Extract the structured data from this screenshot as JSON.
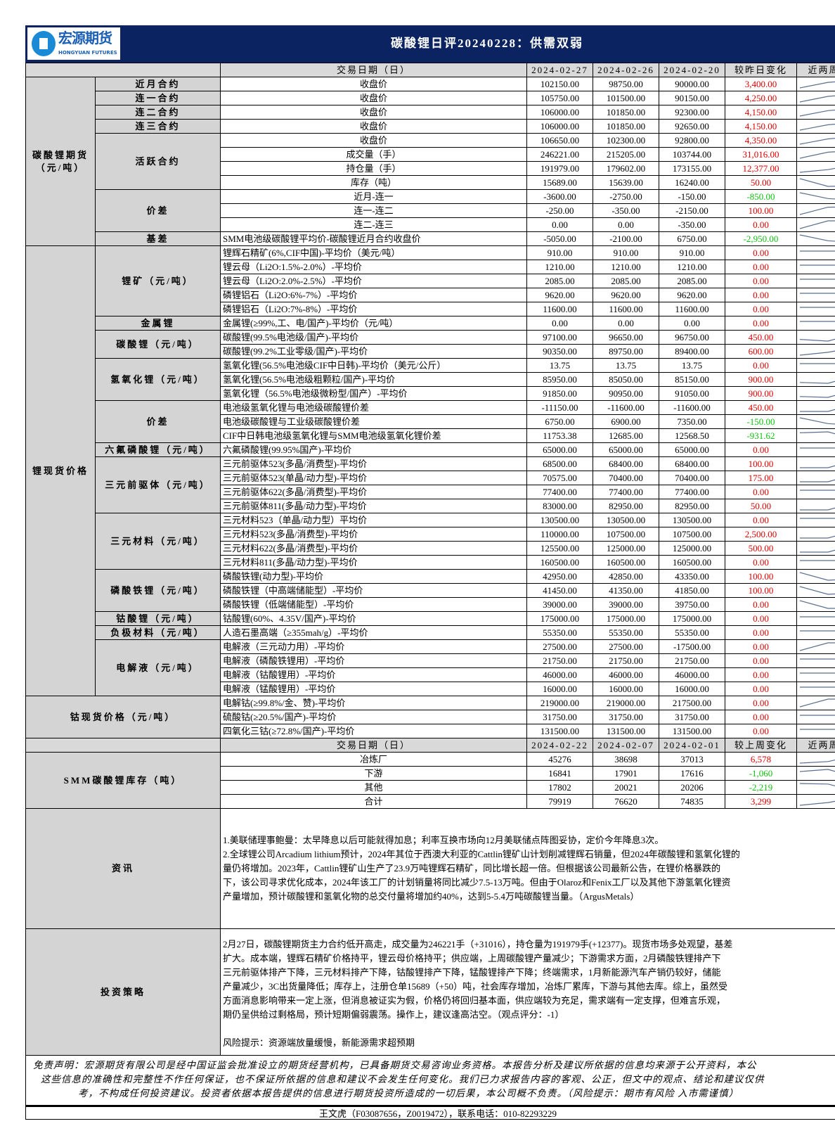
{
  "header": {
    "logo_cn": "宏源期货",
    "logo_en": "HONGYUAN FUTURES",
    "title": "碳酸锂日评20240228：供需双弱"
  },
  "colors": {
    "band": "#0b2461",
    "label_bg": "#d4d4d4",
    "up": "#e00000",
    "down": "#10c010",
    "sparkline": "#5a6f8f"
  },
  "table": {
    "header1": {
      "label": "交易日期（日）",
      "dates": [
        "2024-02-27",
        "2024-02-26",
        "2024-02-20"
      ],
      "change": "较昨日变化",
      "trend": "近两周"
    },
    "sections": [
      {
        "category": [
          "碳酸锂期货",
          "（元/吨）"
        ],
        "groups": [
          {
            "name": "近月合约",
            "rows": [
              [
                "收盘价",
                "102150.00",
                "98750.00",
                "90000.00",
                "3,400.00"
              ]
            ]
          },
          {
            "name": "连一合约",
            "rows": [
              [
                "收盘价",
                "105750.00",
                "101500.00",
                "90150.00",
                "4,250.00"
              ]
            ]
          },
          {
            "name": "连二合约",
            "rows": [
              [
                "收盘价",
                "106000.00",
                "101850.00",
                "92300.00",
                "4,150.00"
              ]
            ]
          },
          {
            "name": "连三合约",
            "rows": [
              [
                "收盘价",
                "106000.00",
                "101850.00",
                "92650.00",
                "4,150.00"
              ]
            ]
          },
          {
            "name": "活跃合约",
            "rows": [
              [
                "收盘价",
                "106650.00",
                "102300.00",
                "92800.00",
                "4,350.00"
              ],
              [
                "成交量（手）",
                "246221.00",
                "215205.00",
                "103744.00",
                "31,016.00"
              ],
              [
                "持仓量（手）",
                "191979.00",
                "179602.00",
                "173155.00",
                "12,377.00"
              ],
              [
                "库存（吨）",
                "15689.00",
                "15639.00",
                "16240.00",
                "50.00"
              ]
            ]
          },
          {
            "name": "价差",
            "rows": [
              [
                "近月-连一",
                "-3600.00",
                "-2750.00",
                "-150.00",
                "-850.00"
              ],
              [
                "连一-连二",
                "-250.00",
                "-350.00",
                "-2150.00",
                "100.00"
              ],
              [
                "连二-连三",
                "0.00",
                "0.00",
                "-350.00",
                "0.00"
              ]
            ]
          },
          {
            "name": "基差",
            "left": true,
            "rows": [
              [
                "SMM电池级碳酸锂平均价-碳酸锂近月合约收盘价",
                "-5050.00",
                "-2100.00",
                "6750.00",
                "-2,950.00"
              ]
            ]
          }
        ]
      },
      {
        "category": [
          "锂现货价格"
        ],
        "left": true,
        "groups": [
          {
            "name": "锂矿（元/吨）",
            "rows": [
              [
                "锂辉石精矿(6%,CIF中国)-平均价（美元/吨）",
                "910.00",
                "910.00",
                "910.00",
                "0.00"
              ],
              [
                "锂云母（Li2O:1.5%-2.0%）-平均价",
                "1210.00",
                "1210.00",
                "1210.00",
                "0.00"
              ],
              [
                "锂云母（Li2O:2.0%-2.5%）-平均价",
                "2085.00",
                "2085.00",
                "2085.00",
                "0.00"
              ],
              [
                "磷锂铝石（Li2O:6%-7%）-平均价",
                "9620.00",
                "9620.00",
                "9620.00",
                "0.00"
              ],
              [
                "磷锂铝石（Li2O:7%-8%）-平均价",
                "11600.00",
                "11600.00",
                "11600.00",
                "0.00"
              ]
            ]
          },
          {
            "name": "金属锂",
            "rows": [
              [
                "金属锂(≥99%,工、电/国产)-平均价（元/吨）",
                "0.00",
                "0.00",
                "0.00",
                "0.00"
              ]
            ]
          },
          {
            "name": "碳酸锂（元/吨）",
            "rows": [
              [
                "碳酸锂(99.5%电池级/国产)-平均价",
                "97100.00",
                "96650.00",
                "96750.00",
                "450.00"
              ],
              [
                "碳酸锂(99.2%工业零级/国产)-平均价",
                "90350.00",
                "89750.00",
                "89400.00",
                "600.00"
              ]
            ]
          },
          {
            "name": "氢氧化锂（元/吨）",
            "rows": [
              [
                "氢氧化锂(56.5%电池级CIF中日韩)-平均价（美元/公斤）",
                "13.75",
                "13.75",
                "13.75",
                "0.00"
              ],
              [
                "氢氧化锂(56.5%电池级粗颗粒/国产)-平均价",
                "85950.00",
                "85050.00",
                "85150.00",
                "900.00"
              ],
              [
                "氢氧化锂（56.5%电池级微粉型/国产）-平均价",
                "91850.00",
                "90950.00",
                "91050.00",
                "900.00"
              ]
            ]
          },
          {
            "name": "价差",
            "rows": [
              [
                "电池级氢氧化锂与电池级碳酸锂价差",
                "-11150.00",
                "-11600.00",
                "-11600.00",
                "450.00"
              ],
              [
                "电池级碳酸锂与工业级碳酸锂价差",
                "6750.00",
                "6900.00",
                "7350.00",
                "-150.00"
              ],
              [
                "CIF中日韩电池级氢氧化锂与SMM电池级氢氧化锂价差",
                "11753.38",
                "12685.00",
                "12568.50",
                "-931.62"
              ]
            ]
          },
          {
            "name": "六氟磷酸锂（元/吨）",
            "rows": [
              [
                "六氟磷酸锂(99.95%国产)-平均价",
                "65000.00",
                "65000.00",
                "65000.00",
                "0.00"
              ]
            ]
          },
          {
            "name": "三元前驱体（元/吨）",
            "rows": [
              [
                "三元前驱体523(多晶/消费型)-平均价",
                "68500.00",
                "68400.00",
                "68400.00",
                "100.00"
              ],
              [
                "三元前驱体523(单晶/动力型)-平均价",
                "70575.00",
                "70400.00",
                "70400.00",
                "175.00"
              ],
              [
                "三元前驱体622(多晶/消费型)-平均价",
                "77400.00",
                "77400.00",
                "77400.00",
                "0.00"
              ],
              [
                "三元前驱体811(多晶/动力型)-平均价",
                "83000.00",
                "82950.00",
                "82950.00",
                "50.00"
              ]
            ]
          },
          {
            "name": "三元材料（元/吨）",
            "rows": [
              [
                "三元材料523（单晶/动力型）平均价",
                "130500.00",
                "130500.00",
                "130500.00",
                "0.00"
              ],
              [
                "三元材料523(多晶/消费型)-平均价",
                "110000.00",
                "107500.00",
                "107500.00",
                "2,500.00"
              ],
              [
                "三元材料622(多晶/消费型)-平均价",
                "125500.00",
                "125000.00",
                "125000.00",
                "500.00"
              ],
              [
                "三元材料811(多晶/动力型)-平均价",
                "160500.00",
                "160500.00",
                "160500.00",
                "0.00"
              ]
            ]
          },
          {
            "name": "磷酸铁锂（元/吨）",
            "rows": [
              [
                "磷酸铁锂(动力型)-平均价",
                "42950.00",
                "42850.00",
                "43350.00",
                "100.00"
              ],
              [
                "磷酸铁锂（中高端储能型）-平均价",
                "41450.00",
                "41350.00",
                "41850.00",
                "100.00"
              ],
              [
                "磷酸铁锂（低端储能型）-平均价",
                "39000.00",
                "39000.00",
                "39750.00",
                "0.00"
              ]
            ]
          },
          {
            "name": "钴酸锂（元/吨）",
            "rows": [
              [
                "钴酸锂(60%、4.35V/国产)-平均价",
                "175000.00",
                "175000.00",
                "175000.00",
                "0.00"
              ]
            ]
          },
          {
            "name": "负极材料（元/吨）",
            "rows": [
              [
                "人造石墨高端（≥355mah/g）-平均价",
                "55350.00",
                "55350.00",
                "55350.00",
                "0.00"
              ]
            ]
          },
          {
            "name": "电解液（元/吨）",
            "rows": [
              [
                "电解液（三元动力用）-平均价",
                "27500.00",
                "27500.00",
                "-17500.00",
                "0.00"
              ],
              [
                "电解液（磷酸铁锂用）-平均价",
                "21750.00",
                "21750.00",
                "21750.00",
                "0.00"
              ],
              [
                "电解液（钴酸锂用）-平均价",
                "46000.00",
                "46000.00",
                "46000.00",
                "0.00"
              ],
              [
                "电解液（锰酸锂用）-平均价",
                "16000.00",
                "16000.00",
                "16000.00",
                "0.00"
              ]
            ]
          }
        ]
      },
      {
        "category": [
          "钴现货价格（元/吨）"
        ],
        "merged": true,
        "groups": [
          {
            "name": "",
            "rows": [
              [
                "电解钴(≥99.8%/金、赞)-平均价",
                "219000.00",
                "219000.00",
                "217500.00",
                "0.00"
              ],
              [
                "硫酸钴(≥20.5%/国产)-平均价",
                "31750.00",
                "31750.00",
                "31750.00",
                "0.00"
              ],
              [
                "四氧化三钴(≥72.8%/国产)-平均价",
                "131500.00",
                "131500.00",
                "131500.00",
                "0.00"
              ]
            ]
          }
        ]
      }
    ],
    "header2": {
      "label": "交易日期（日）",
      "dates": [
        "2024-02-22",
        "2024-02-07",
        "2024-02-01"
      ],
      "change": "较上周变化",
      "trend": "近两周"
    },
    "inventory": {
      "category": [
        "SMM碳酸锂库存（吨）"
      ],
      "merged": true,
      "groups": [
        {
          "name": "",
          "rows": [
            [
              "冶炼厂",
              "45276",
              "38698",
              "37013",
              "6,578"
            ],
            [
              "下游",
              "16841",
              "17901",
              "17616",
              "-1,060"
            ],
            [
              "其他",
              "17802",
              "20021",
              "20206",
              "-2,219"
            ],
            [
              "合计",
              "79919",
              "76620",
              "74835",
              "3,299"
            ]
          ]
        }
      ]
    }
  },
  "news": {
    "label": "资讯",
    "lines": [
      "1.美联储理事鲍曼：太早降息以后可能就得加息；利率互换市场向12月美联储点阵图妥协，定价今年降息3次。",
      "2.全球锂公司Arcadium lithium预计，2024年其位于西澳大利亚的Cattlin锂矿山计划削减锂辉石销量，但2024年碳酸锂和氢氧化锂的",
      "量仍将增加。2023年，Cattlin锂矿山生产了23.9万吨锂辉石精矿，同比增长超一倍。但根据该公司最新公告，在锂价格暴跌的",
      "下，该公司寻求优化成本，2024年该工厂的计划销量将同比减少7.5-13万吨。但由于Olaroz和Fenix工厂以及其他下游氢氧化锂资",
      "产量增加，预计碳酸锂和氢氧化物的总交付量将增加约40%，达到5-5.4万吨碳酸锂当量。（ArgusMetals）"
    ]
  },
  "strategy": {
    "label": "投资策略",
    "lines": [
      "2月27日，碳酸锂期货主力合约低开高走，成交量为246221手（+31016），持仓量为191979手(+12377)。现货市场多处观望，基差",
      "扩大。成本端，锂辉石精矿价格持平，锂云母价格持平；供应端，上周碳酸锂产量减少；下游需求方面，2月磷酸铁锂排产下",
      "三元前驱体排产下降，三元材料排产下降，钴酸锂排产下降，锰酸锂排产下降；终端需求，1月新能源汽车产销仍较好，储能",
      "产量减少，3C出货量降低；库存上，注册仓单15689（+50）吨，社会库存增加，冶炼厂累库，下游与其他去库。综上，虽然受",
      "方面消息影响带来一定上涨，但消息被证实为假，价格仍将回归基本面，供应端较为充足，需求端有一定支撑，但难言乐观，",
      "期仍呈供给过剩格局，预计短期偏弱震荡。操作上，建议逢高沽空。（观点评分：-1）"
    ],
    "risk": "风险提示：资源端放量缓慢，新能源需求超预期"
  },
  "disclaimer": {
    "lines": [
      "免责声明：宏源期货有限公司是经中国证监会批准设立的期货经营机构，已具备期货交易咨询业务资格。本报告分析及建议所依据的信息均来源于公开资料，本公",
      "这些信息的准确性和完整性不作任何保证，也不保证所依据的信息和建议不会发生任何变化。我们已力求报告内容的客观、公正，但文中的观点、结论和建议仅供",
      "考，不构成任何投资建议。投资者依据本报告提供的信息进行期货投资所造成的一切后果，本公司概不负责。（风险提示：期市有风险 入市需谨慎）"
    ]
  },
  "contact": "王文虎（F03087656，Z0019472），联系电话：010-82293229"
}
